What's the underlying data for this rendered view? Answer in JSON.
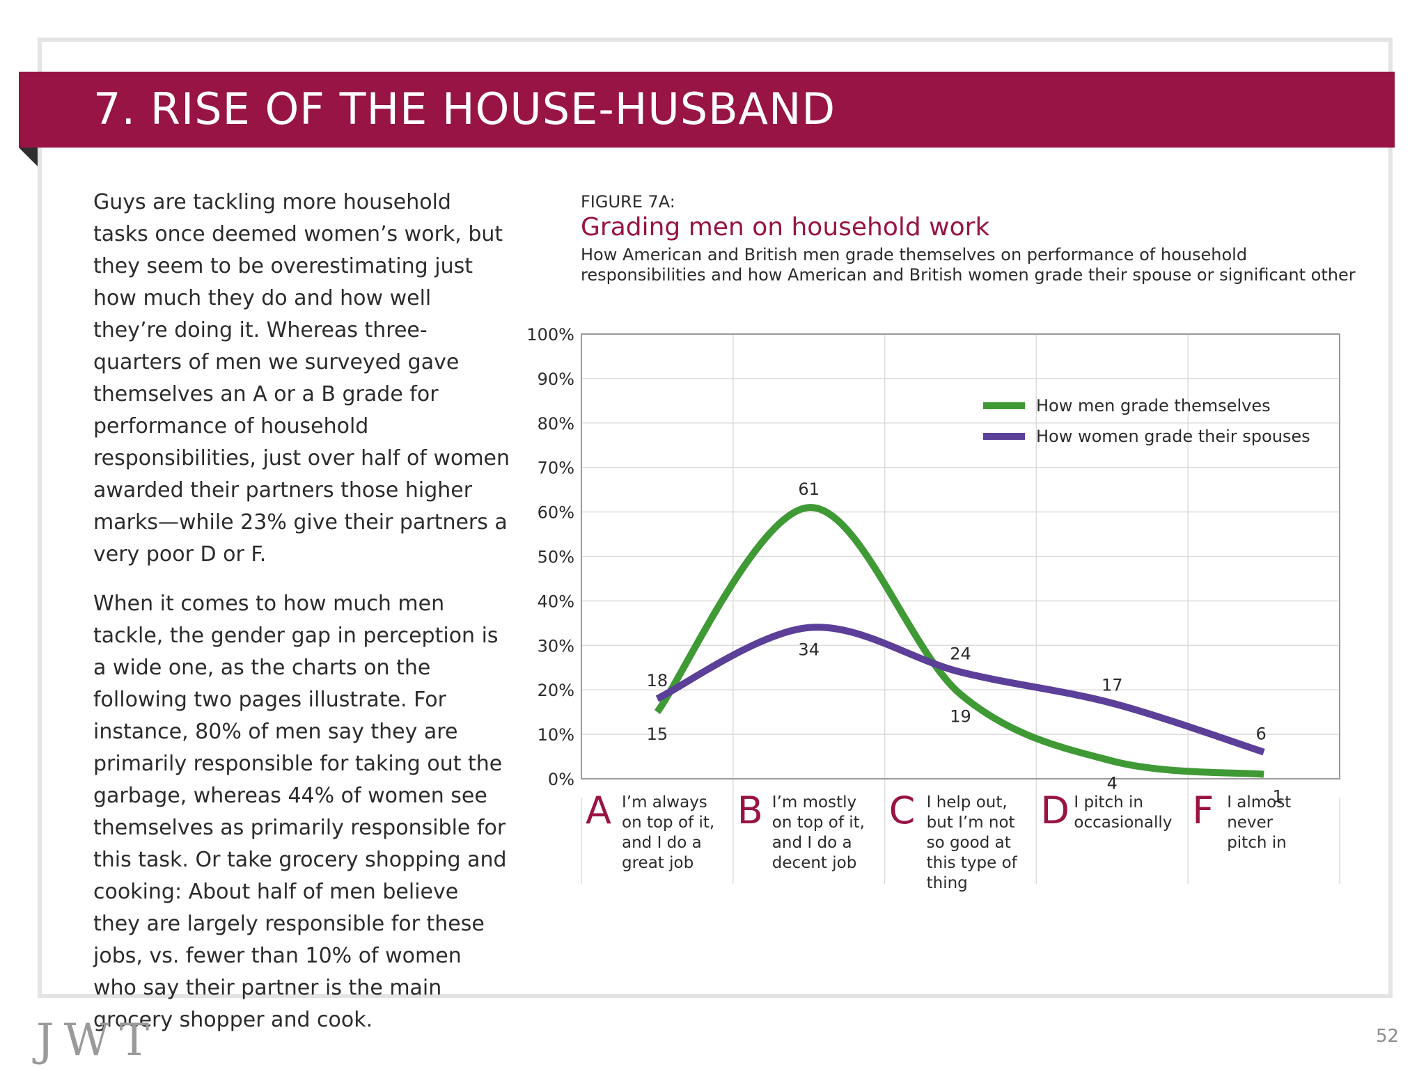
{
  "header": {
    "title": "7. RISE OF THE HOUSE-HUSBAND"
  },
  "body": {
    "paragraph_1": "Guys are tackling more household tasks once deemed women’s work, but they seem to be overestimating just how much they do and how well they’re doing it. Whereas three-quarters of men we surveyed gave themselves an A or a B grade for performance of household responsibilities, just over half of women awarded their partners those higher marks—while 23% give their partners a very poor D or F.",
    "paragraph_2": "When it comes to how much men tackle, the gender gap in perception is a wide one, as the charts on the following two pages illustrate. For instance, 80% of men say they are primarily responsible for taking out the garbage, whereas 44% of women see themselves as primarily responsible for this task. Or take grocery shopping and cooking: About half of men believe they are largely responsible for these jobs, vs. fewer than 10% of women who say their partner is the main grocery shopper and cook."
  },
  "figure": {
    "label": "FIGURE 7A:",
    "title": "Grading men on household work",
    "subtitle": "How American and British men grade themselves on performance of household responsibilities and how American and British women grade their spouse or significant other"
  },
  "chart_data": {
    "type": "line",
    "smooth": true,
    "y_ticks": [
      "0%",
      "10%",
      "20%",
      "30%",
      "40%",
      "50%",
      "60%",
      "70%",
      "80%",
      "90%",
      "100%"
    ],
    "ylim": [
      0,
      100
    ],
    "grid": true,
    "legend_position": "top-right",
    "categories": [
      {
        "letter": "A",
        "lines": [
          "I’m always",
          "on top of it,",
          "and I do a",
          "great job"
        ]
      },
      {
        "letter": "B",
        "lines": [
          "I’m mostly",
          "on top of it,",
          "and I do a",
          "decent job"
        ]
      },
      {
        "letter": "C",
        "lines": [
          "I help out,",
          "but I’m not",
          "so good at",
          "this type of",
          "thing"
        ]
      },
      {
        "letter": "D",
        "lines": [
          "I pitch in",
          "occasionally"
        ]
      },
      {
        "letter": "F",
        "lines": [
          "I almost",
          "never",
          "pitch in"
        ]
      }
    ],
    "series": [
      {
        "name": "How men grade themselves",
        "color": "#3f9a35",
        "values": [
          15,
          61,
          19,
          4,
          1
        ]
      },
      {
        "name": "How women grade their spouses",
        "color": "#5b3f98",
        "values": [
          18,
          34,
          24,
          17,
          6
        ]
      }
    ]
  },
  "footer": {
    "logo": "JWT",
    "page": "52"
  }
}
